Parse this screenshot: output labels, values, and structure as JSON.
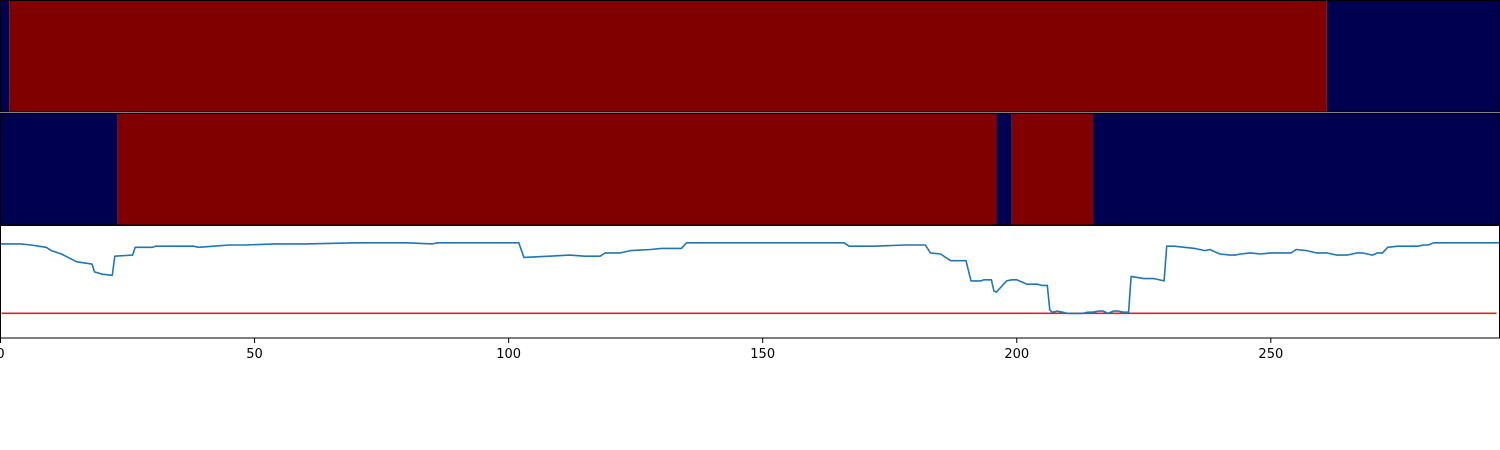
{
  "chart_data": {
    "type": "line",
    "panels": [
      {
        "kind": "segments",
        "description_source": "top colour band",
        "segments": [
          {
            "state": "low",
            "start": 0,
            "end": 1.7
          },
          {
            "state": "high",
            "start": 1.7,
            "end": 261
          },
          {
            "state": "low",
            "start": 261,
            "end": 295
          }
        ]
      },
      {
        "kind": "segments",
        "description_source": "middle colour band",
        "segments": [
          {
            "state": "low",
            "start": 0,
            "end": 23
          },
          {
            "state": "high",
            "start": 23,
            "end": 196
          },
          {
            "state": "low",
            "start": 196,
            "end": 199
          },
          {
            "state": "high",
            "start": 199,
            "end": 215
          },
          {
            "state": "low",
            "start": 215,
            "end": 295
          }
        ]
      },
      {
        "kind": "line",
        "series": [
          {
            "color": "#1f77b4",
            "points": [
              [
                0,
                0.16
              ],
              [
                4,
                0.16
              ],
              [
                6,
                0.17
              ],
              [
                9,
                0.19
              ],
              [
                10,
                0.22
              ],
              [
                12,
                0.25
              ],
              [
                15,
                0.32
              ],
              [
                18,
                0.34
              ],
              [
                18.5,
                0.41
              ],
              [
                20,
                0.43
              ],
              [
                22,
                0.44
              ],
              [
                22.5,
                0.27
              ],
              [
                26,
                0.26
              ],
              [
                26.5,
                0.19
              ],
              [
                30,
                0.19
              ],
              [
                30.5,
                0.18
              ],
              [
                35,
                0.18
              ],
              [
                38,
                0.18
              ],
              [
                39,
                0.19
              ],
              [
                42,
                0.18
              ],
              [
                45,
                0.17
              ],
              [
                48,
                0.17
              ],
              [
                54,
                0.16
              ],
              [
                60,
                0.16
              ],
              [
                70,
                0.15
              ],
              [
                80,
                0.15
              ],
              [
                85,
                0.16
              ],
              [
                86,
                0.15
              ],
              [
                90,
                0.15
              ],
              [
                95,
                0.15
              ],
              [
                100,
                0.15
              ],
              [
                102,
                0.15
              ],
              [
                103,
                0.28
              ],
              [
                108,
                0.27
              ],
              [
                112,
                0.26
              ],
              [
                115,
                0.27
              ],
              [
                118,
                0.27
              ],
              [
                119,
                0.24
              ],
              [
                122,
                0.24
              ],
              [
                124,
                0.22
              ],
              [
                128,
                0.21
              ],
              [
                130,
                0.2
              ],
              [
                134,
                0.2
              ],
              [
                135,
                0.15
              ],
              [
                140,
                0.15
              ],
              [
                150,
                0.15
              ],
              [
                160,
                0.15
              ],
              [
                166,
                0.15
              ],
              [
                167,
                0.18
              ],
              [
                172,
                0.18
              ],
              [
                178,
                0.17
              ],
              [
                182,
                0.17
              ],
              [
                183,
                0.24
              ],
              [
                185,
                0.25
              ],
              [
                186,
                0.28
              ],
              [
                187,
                0.31
              ],
              [
                189,
                0.31
              ],
              [
                190,
                0.31
              ],
              [
                191,
                0.49
              ],
              [
                193,
                0.49
              ],
              [
                193.5,
                0.48
              ],
              [
                194,
                0.48
              ],
              [
                195,
                0.48
              ],
              [
                195.5,
                0.58
              ],
              [
                196,
                0.59
              ],
              [
                197,
                0.54
              ],
              [
                198,
                0.49
              ],
              [
                199,
                0.48
              ],
              [
                200,
                0.48
              ],
              [
                201,
                0.5
              ],
              [
                202,
                0.52
              ],
              [
                203,
                0.52
              ],
              [
                204,
                0.52
              ],
              [
                205,
                0.53
              ],
              [
                206,
                0.53
              ],
              [
                206.5,
                0.75
              ],
              [
                207,
                0.77
              ],
              [
                208,
                0.76
              ],
              [
                209,
                0.77
              ],
              [
                210,
                0.78
              ],
              [
                211,
                0.78
              ],
              [
                212,
                0.78
              ],
              [
                213,
                0.78
              ],
              [
                214,
                0.77
              ],
              [
                215,
                0.77
              ],
              [
                216,
                0.76
              ],
              [
                217,
                0.76
              ],
              [
                218,
                0.78
              ],
              [
                219,
                0.76
              ],
              [
                220,
                0.76
              ],
              [
                221,
                0.77
              ],
              [
                222,
                0.77
              ],
              [
                222.5,
                0.45
              ],
              [
                225,
                0.47
              ],
              [
                227,
                0.47
              ],
              [
                229,
                0.49
              ],
              [
                229.5,
                0.18
              ],
              [
                231,
                0.18
              ],
              [
                233,
                0.19
              ],
              [
                235,
                0.2
              ],
              [
                237,
                0.22
              ],
              [
                238,
                0.21
              ],
              [
                239,
                0.23
              ],
              [
                240,
                0.25
              ],
              [
                242,
                0.26
              ],
              [
                243,
                0.26
              ],
              [
                244,
                0.25
              ],
              [
                246,
                0.24
              ],
              [
                248,
                0.25
              ],
              [
                250,
                0.24
              ],
              [
                252,
                0.24
              ],
              [
                253,
                0.24
              ],
              [
                254,
                0.24
              ],
              [
                255,
                0.21
              ],
              [
                257,
                0.22
              ],
              [
                259,
                0.24
              ],
              [
                261,
                0.24
              ],
              [
                263,
                0.26
              ],
              [
                265,
                0.26
              ],
              [
                267,
                0.24
              ],
              [
                268,
                0.24
              ],
              [
                269,
                0.25
              ],
              [
                270,
                0.26
              ],
              [
                271,
                0.24
              ],
              [
                272,
                0.24
              ],
              [
                273,
                0.19
              ],
              [
                275,
                0.18
              ],
              [
                277,
                0.18
              ],
              [
                279,
                0.18
              ],
              [
                280,
                0.17
              ],
              [
                281,
                0.17
              ],
              [
                282,
                0.15
              ],
              [
                285,
                0.15
              ],
              [
                295,
                0.15
              ]
            ]
          }
        ],
        "threshold": {
          "value": 0.78,
          "color": "#d62728"
        }
      }
    ],
    "x_ticks": [
      0,
      50,
      100,
      150,
      200,
      250
    ],
    "x_tick_labels": [
      "0",
      "50",
      "100",
      "150",
      "200",
      "250"
    ],
    "xlim": [
      0,
      295
    ],
    "colors": {
      "high": "#800000",
      "low": "#000050"
    }
  }
}
